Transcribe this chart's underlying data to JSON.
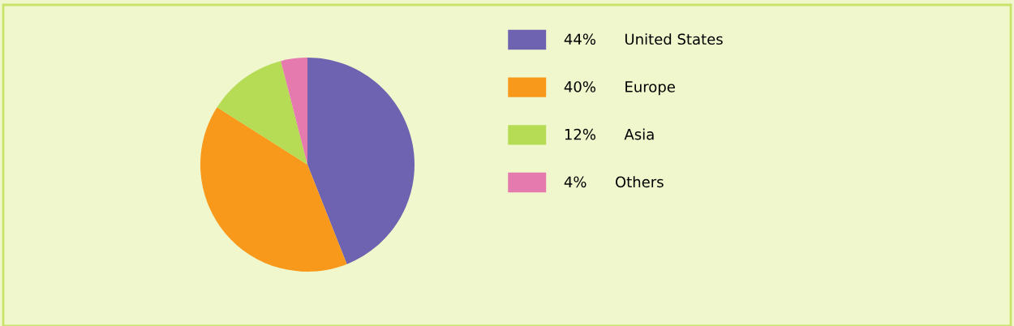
{
  "chart_data": {
    "type": "pie",
    "categories": [
      "United States",
      "Europe",
      "Asia",
      "Others"
    ],
    "values": [
      44,
      40,
      12,
      4
    ],
    "value_labels": [
      "44%",
      "40%",
      "12%",
      "4%"
    ],
    "colors": [
      "#6e63b0",
      "#f9991c",
      "#b5dc54",
      "#e57aae"
    ],
    "legend": "right"
  }
}
